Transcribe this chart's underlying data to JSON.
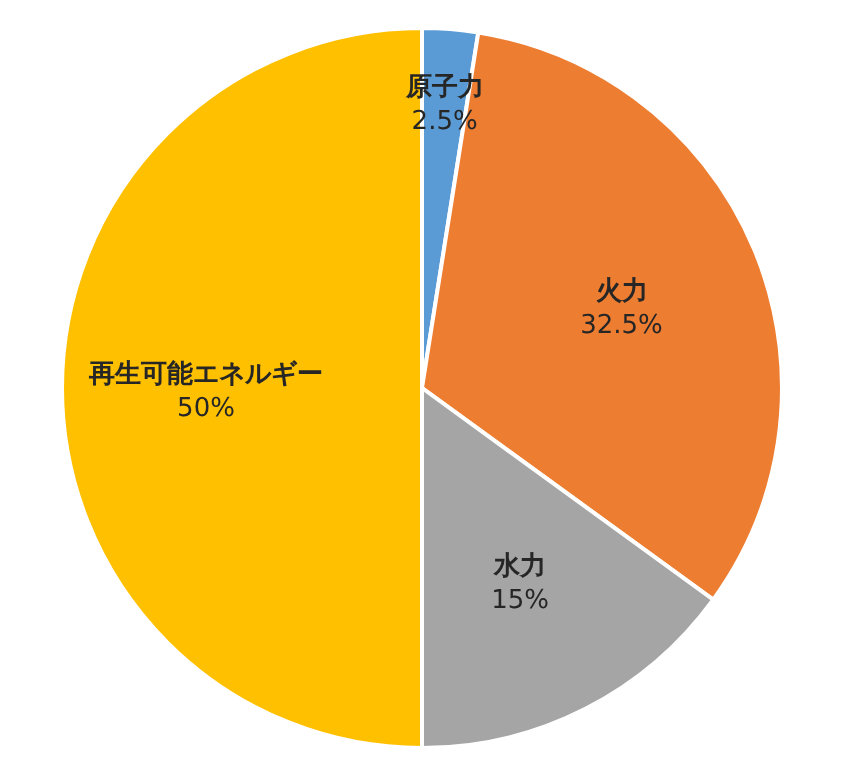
{
  "chart_data": {
    "type": "pie",
    "categories": [
      "原子力",
      "火力",
      "水力",
      "再生可能エネルギー"
    ],
    "values": [
      2.5,
      32.5,
      15,
      50
    ],
    "value_labels": [
      "2.5%",
      "32.5%",
      "15%",
      "50%"
    ],
    "colors": [
      "#5b9bd5",
      "#ed7d31",
      "#a5a5a5",
      "#ffc000"
    ]
  }
}
